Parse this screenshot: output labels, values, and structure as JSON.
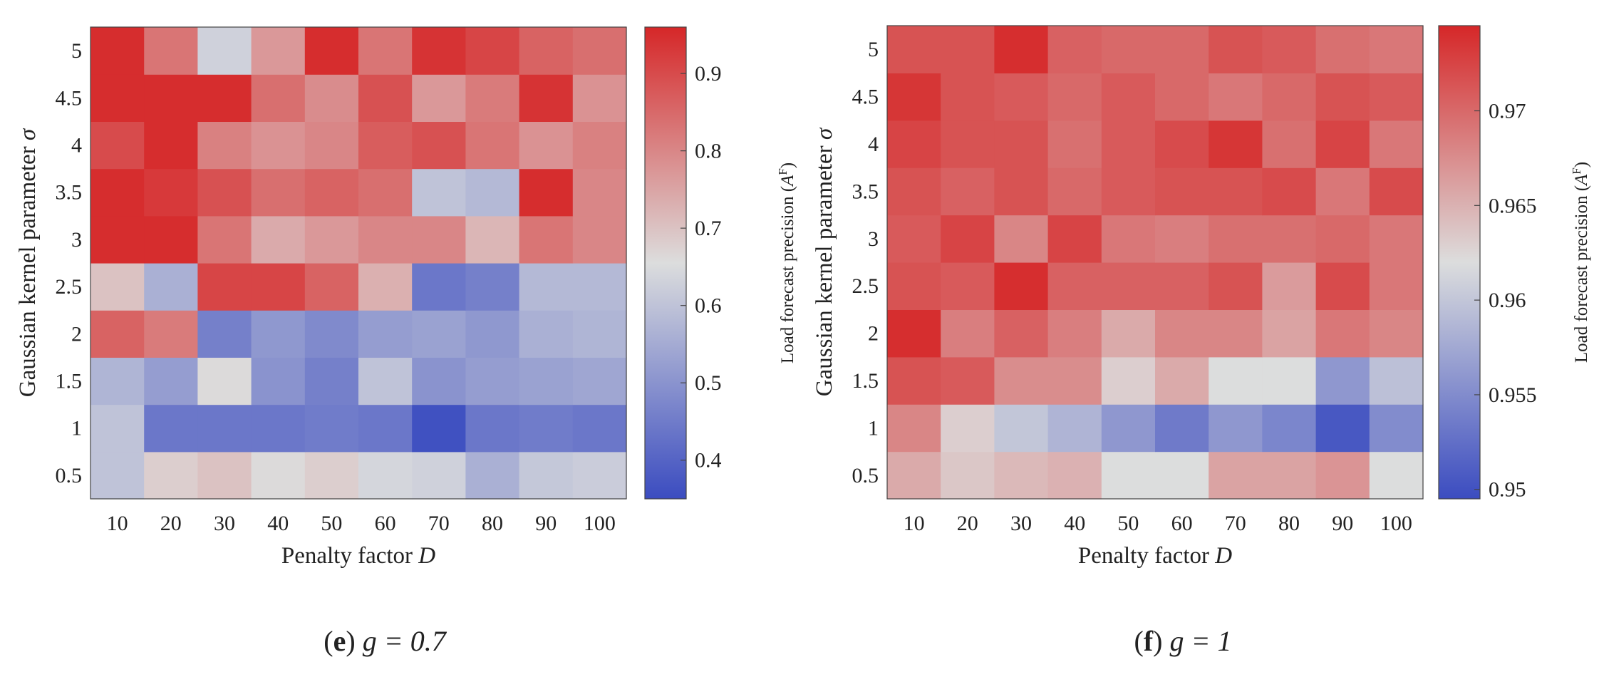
{
  "chart_data": [
    {
      "type": "heatmap",
      "panel_label": "(e)",
      "caption_prefix": "(",
      "caption_letter": "e",
      "caption_suffix": ")",
      "caption_math": "g = 0.7",
      "xlabel": "Penalty factor",
      "xlabel_var": "D",
      "ylabel": "Gaussian kernel parameter",
      "ylabel_var": "σ",
      "x": [
        "10",
        "20",
        "30",
        "40",
        "50",
        "60",
        "70",
        "80",
        "90",
        "100"
      ],
      "y": [
        "0.5",
        "1",
        "1.5",
        "2",
        "2.5",
        "3",
        "3.5",
        "4",
        "4.5",
        "5"
      ],
      "colorbar_label": "Load forecast precision (A",
      "colorbar_label_sup": "F",
      "colorbar_label_end": ")",
      "colorbar_range": [
        0.35,
        0.96
      ],
      "colorbar_ticks": [
        0.4,
        0.5,
        0.6,
        0.7,
        0.8,
        0.9
      ],
      "colorbar_tick_labels": [
        "0.4",
        "0.5",
        "0.6",
        "0.7",
        "0.8",
        "0.9"
      ],
      "colormap": [
        "#3b4cc0",
        "#dcdddd",
        "#d62728"
      ],
      "values": [
        [
          0.6,
          0.68,
          0.7,
          0.66,
          0.68,
          0.64,
          0.63,
          0.56,
          0.61,
          0.62
        ],
        [
          0.6,
          0.44,
          0.44,
          0.44,
          0.45,
          0.44,
          0.36,
          0.44,
          0.45,
          0.44
        ],
        [
          0.57,
          0.52,
          0.66,
          0.5,
          0.46,
          0.6,
          0.5,
          0.52,
          0.53,
          0.54
        ],
        [
          0.86,
          0.82,
          0.46,
          0.51,
          0.48,
          0.52,
          0.53,
          0.51,
          0.56,
          0.57
        ],
        [
          0.7,
          0.56,
          0.91,
          0.91,
          0.86,
          0.73,
          0.44,
          0.46,
          0.58,
          0.58
        ],
        [
          0.95,
          0.95,
          0.83,
          0.74,
          0.77,
          0.8,
          0.8,
          0.72,
          0.83,
          0.8
        ],
        [
          0.95,
          0.93,
          0.89,
          0.84,
          0.86,
          0.84,
          0.6,
          0.58,
          0.95,
          0.8
        ],
        [
          0.9,
          0.95,
          0.81,
          0.78,
          0.8,
          0.87,
          0.89,
          0.83,
          0.78,
          0.81
        ],
        [
          0.95,
          0.95,
          0.95,
          0.84,
          0.79,
          0.89,
          0.77,
          0.82,
          0.94,
          0.78
        ],
        [
          0.95,
          0.83,
          0.63,
          0.77,
          0.95,
          0.83,
          0.94,
          0.91,
          0.86,
          0.84
        ]
      ]
    },
    {
      "type": "heatmap",
      "panel_label": "(f)",
      "caption_prefix": "(",
      "caption_letter": "f",
      "caption_suffix": ")",
      "caption_math": "g = 1",
      "xlabel": "Penalty factor",
      "xlabel_var": "D",
      "ylabel": "Gaussian kernel parameter",
      "ylabel_var": "σ",
      "x": [
        "10",
        "20",
        "30",
        "40",
        "50",
        "60",
        "70",
        "80",
        "90",
        "100"
      ],
      "y": [
        "0.5",
        "1",
        "1.5",
        "2",
        "2.5",
        "3",
        "3.5",
        "4",
        "4.5",
        "5"
      ],
      "colorbar_label": "Load forecast precision (A",
      "colorbar_label_sup": "F",
      "colorbar_label_end": ")",
      "colorbar_range": [
        0.9495,
        0.9745
      ],
      "colorbar_ticks": [
        0.95,
        0.955,
        0.96,
        0.965,
        0.97
      ],
      "colorbar_tick_labels": [
        "0.95",
        "0.955",
        "0.96",
        "0.965",
        "0.97"
      ],
      "colormap": [
        "#3b4cc0",
        "#dcdddd",
        "#d62728"
      ],
      "values": [
        [
          0.9655,
          0.9635,
          0.9645,
          0.965,
          0.962,
          0.962,
          0.966,
          0.966,
          0.967,
          0.962
        ],
        [
          0.968,
          0.963,
          0.96,
          0.9585,
          0.956,
          0.9535,
          0.956,
          0.9545,
          0.9505,
          0.955
        ],
        [
          0.9715,
          0.971,
          0.9675,
          0.9675,
          0.963,
          0.9655,
          0.962,
          0.962,
          0.956,
          0.9595
        ],
        [
          0.974,
          0.9685,
          0.9705,
          0.9685,
          0.9655,
          0.968,
          0.968,
          0.966,
          0.969,
          0.968
        ],
        [
          0.9715,
          0.971,
          0.974,
          0.9705,
          0.9705,
          0.9705,
          0.9715,
          0.9665,
          0.972,
          0.969
        ],
        [
          0.971,
          0.9725,
          0.968,
          0.9725,
          0.969,
          0.9685,
          0.9695,
          0.9695,
          0.97,
          0.969
        ],
        [
          0.9715,
          0.9705,
          0.9715,
          0.97,
          0.971,
          0.9715,
          0.9715,
          0.972,
          0.969,
          0.972
        ],
        [
          0.9725,
          0.9715,
          0.9715,
          0.9695,
          0.971,
          0.972,
          0.9735,
          0.9695,
          0.9725,
          0.969
        ],
        [
          0.9735,
          0.9715,
          0.971,
          0.97,
          0.971,
          0.97,
          0.969,
          0.97,
          0.9715,
          0.971
        ],
        [
          0.9715,
          0.9715,
          0.974,
          0.9705,
          0.97,
          0.97,
          0.9715,
          0.971,
          0.9695,
          0.969
        ]
      ]
    }
  ]
}
